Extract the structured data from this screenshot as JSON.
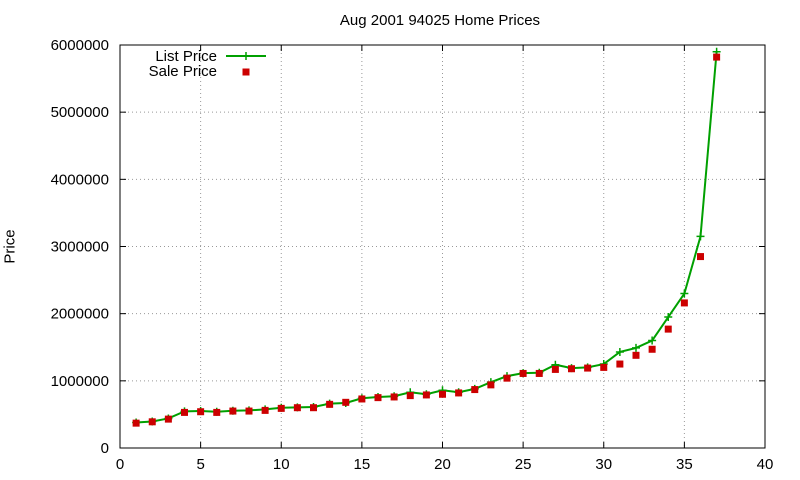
{
  "chart_data": {
    "type": "line",
    "title": "Aug 2001 94025 Home Prices",
    "xlabel": "",
    "ylabel": "Price",
    "xlim": [
      0,
      40
    ],
    "ylim": [
      0,
      6000000
    ],
    "xticks": [
      0,
      5,
      10,
      15,
      20,
      25,
      30,
      35,
      40
    ],
    "yticks": [
      0,
      1000000,
      2000000,
      3000000,
      4000000,
      5000000,
      6000000
    ],
    "grid": true,
    "legend_position": "top-left",
    "series": [
      {
        "name": "List Price",
        "style": "line-with-plus-markers",
        "color": "#00a000",
        "x": [
          1,
          2,
          3,
          4,
          5,
          6,
          7,
          8,
          9,
          10,
          11,
          12,
          13,
          14,
          15,
          16,
          17,
          18,
          19,
          20,
          21,
          22,
          23,
          24,
          25,
          26,
          27,
          28,
          29,
          30,
          31,
          32,
          33,
          34,
          35,
          36,
          37
        ],
        "y": [
          380000,
          395000,
          440000,
          545000,
          550000,
          540000,
          555000,
          560000,
          575000,
          600000,
          605000,
          610000,
          660000,
          670000,
          740000,
          760000,
          770000,
          830000,
          800000,
          860000,
          830000,
          880000,
          980000,
          1070000,
          1115000,
          1120000,
          1240000,
          1190000,
          1200000,
          1250000,
          1430000,
          1490000,
          1600000,
          1950000,
          2300000,
          3150000,
          5900000
        ]
      },
      {
        "name": "Sale Price",
        "style": "square-markers",
        "color": "#cc0000",
        "x": [
          1,
          2,
          3,
          4,
          5,
          6,
          7,
          8,
          9,
          10,
          11,
          12,
          13,
          14,
          15,
          16,
          17,
          18,
          19,
          20,
          21,
          22,
          23,
          24,
          25,
          26,
          27,
          28,
          29,
          30,
          31,
          32,
          33,
          34,
          35,
          36,
          37
        ],
        "y": [
          370000,
          390000,
          430000,
          530000,
          540000,
          530000,
          550000,
          550000,
          560000,
          590000,
          600000,
          600000,
          650000,
          680000,
          730000,
          750000,
          760000,
          780000,
          790000,
          800000,
          820000,
          870000,
          940000,
          1040000,
          1110000,
          1110000,
          1170000,
          1180000,
          1190000,
          1200000,
          1250000,
          1380000,
          1470000,
          1770000,
          2160000,
          2850000,
          5820000
        ]
      }
    ]
  }
}
